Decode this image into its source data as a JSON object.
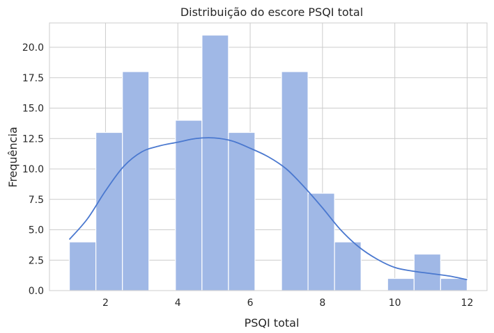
{
  "chart_data": {
    "type": "bar",
    "subtype": "histogram-with-kde",
    "title": "Distribuição do escore PSQI total",
    "xlabel": "PSQI total",
    "ylabel": "Frequência",
    "xlim": [
      0.45,
      12.55
    ],
    "ylim": [
      0,
      22
    ],
    "xticks": [
      2,
      4,
      6,
      8,
      10,
      12
    ],
    "xtick_labels": [
      "2",
      "4",
      "6",
      "8",
      "10",
      "12"
    ],
    "yticks": [
      0,
      2.5,
      5,
      7.5,
      10,
      12.5,
      15,
      17.5,
      20
    ],
    "ytick_labels": [
      "0.0",
      "2.5",
      "5.0",
      "7.5",
      "10.0",
      "12.5",
      "15.0",
      "17.5",
      "20.0"
    ],
    "bins": [
      {
        "x0": 1.0,
        "x1": 1.733,
        "count": 4
      },
      {
        "x0": 1.733,
        "x1": 2.467,
        "count": 13
      },
      {
        "x0": 2.467,
        "x1": 3.2,
        "count": 18
      },
      {
        "x0": 3.2,
        "x1": 3.933,
        "count": 0
      },
      {
        "x0": 3.933,
        "x1": 4.667,
        "count": 14
      },
      {
        "x0": 4.667,
        "x1": 5.4,
        "count": 21
      },
      {
        "x0": 5.4,
        "x1": 6.133,
        "count": 13
      },
      {
        "x0": 6.133,
        "x1": 6.867,
        "count": 0
      },
      {
        "x0": 6.867,
        "x1": 7.6,
        "count": 18
      },
      {
        "x0": 7.6,
        "x1": 8.333,
        "count": 8
      },
      {
        "x0": 8.333,
        "x1": 9.067,
        "count": 4
      },
      {
        "x0": 9.067,
        "x1": 9.8,
        "count": 0
      },
      {
        "x0": 9.8,
        "x1": 10.533,
        "count": 1
      },
      {
        "x0": 10.533,
        "x1": 11.267,
        "count": 3
      },
      {
        "x0": 11.267,
        "x1": 12.0,
        "count": 1
      }
    ],
    "kde": {
      "x": [
        1.0,
        1.5,
        2.0,
        2.5,
        3.0,
        3.5,
        4.0,
        4.5,
        5.0,
        5.5,
        6.0,
        6.5,
        7.0,
        7.5,
        8.0,
        8.5,
        9.0,
        9.5,
        10.0,
        10.5,
        11.0,
        11.5,
        12.0
      ],
      "y": [
        4.2,
        5.9,
        8.2,
        10.2,
        11.4,
        11.9,
        12.2,
        12.5,
        12.55,
        12.3,
        11.7,
        11.0,
        10.0,
        8.5,
        6.8,
        5.0,
        3.6,
        2.6,
        1.9,
        1.6,
        1.4,
        1.2,
        0.9
      ]
    },
    "grid": true,
    "colors": {
      "bar_fill": "#a0b8e6",
      "kde_line": "#4a78cf",
      "grid": "#cccccc"
    }
  }
}
